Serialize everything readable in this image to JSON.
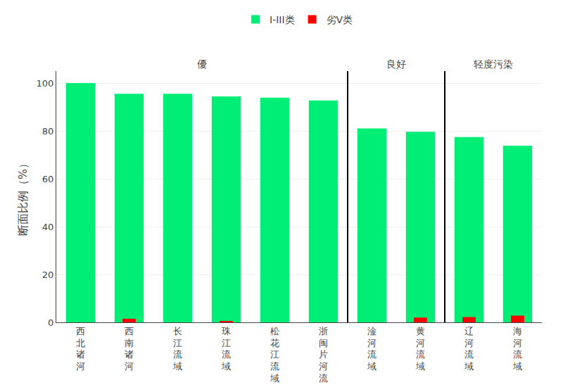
{
  "chart_data": {
    "type": "bar",
    "categories": [
      "西北诸河",
      "西南诸河",
      "长江流域",
      "珠江流域",
      "松花江流域",
      "浙闽片河流",
      "淦河流域",
      "黄河流域",
      "辽河流域",
      "海河流域"
    ],
    "series": [
      {
        "name": "I-III类",
        "color": "#00EE76",
        "values": [
          100,
          95.5,
          95.5,
          94.4,
          93.9,
          92.7,
          81.0,
          79.6,
          77.4,
          73.8
        ]
      },
      {
        "name": "劣V类",
        "color": "#FF0000",
        "values": [
          0,
          1.5,
          0,
          0.3,
          0,
          0,
          0,
          2.0,
          2.2,
          2.8
        ]
      }
    ],
    "ylabel": "断面比例（%）",
    "ylim": [
      0,
      105
    ],
    "yticks": [
      0,
      20,
      40,
      60,
      80,
      100
    ],
    "grid": true,
    "stacked": false,
    "legend": "top",
    "annotations": [
      "優",
      "良好",
      "轻度污染"
    ]
  }
}
